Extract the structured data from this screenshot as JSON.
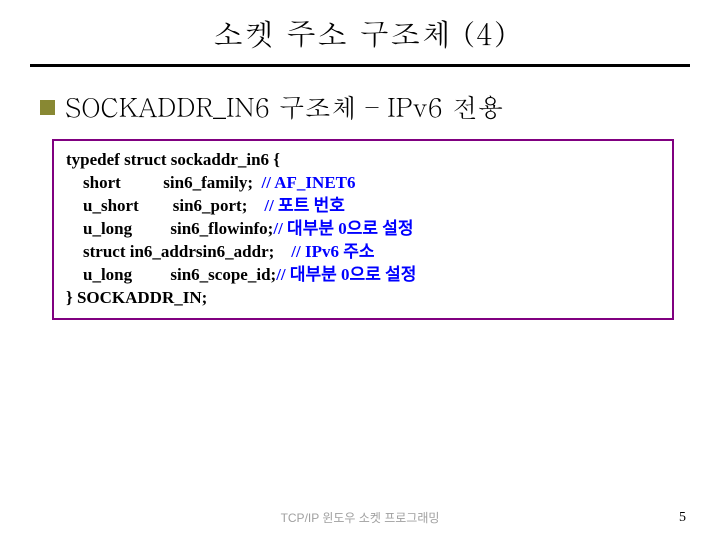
{
  "title": "소켓 주소 구조체 (4)",
  "subtitle": "SOCKADDR_IN6 구조체 – IPv6 전용",
  "code": {
    "open": "typedef struct sockaddr_in6 {",
    "fields": [
      {
        "type": "short",
        "name": "sin6_family;",
        "comment": "// AF_INET6",
        "ko": false
      },
      {
        "type": "u_short",
        "name": "sin6_port;",
        "comment": "// 포트 번호",
        "ko": true
      },
      {
        "type": "u_long",
        "name": "sin6_flowinfo;",
        "comment": "// 대부분 0으로 설정",
        "ko": true
      },
      {
        "type": "struct in6_addr",
        "name": "sin6_addr;",
        "comment": "// IPv6 주소",
        "ko": true
      },
      {
        "type": "u_long",
        "name": "sin6_scope_id;",
        "comment": "// 대부분 0으로 설정",
        "ko": true
      }
    ],
    "close": "} SOCKADDR_IN;"
  },
  "footer": "TCP/IP 윈도우 소켓 프로그래밍",
  "page": "5",
  "colors": {
    "bullet": "#888833",
    "border": "#800080",
    "comment": "#0000ff",
    "footer": "#a0a0a0",
    "hr": "#000000"
  },
  "layout": {
    "type_col_width": 15,
    "name_col_width": 14,
    "indent": "    "
  }
}
